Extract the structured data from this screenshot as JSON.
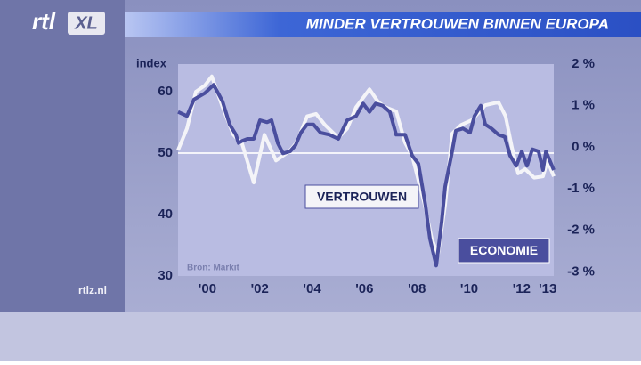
{
  "page": {
    "logo": "rtl",
    "logo_badge": "XL",
    "site": "rtlz.nl"
  },
  "chart_data": {
    "type": "line",
    "title": "MINDER VERTROUWEN BINNEN EUROPA",
    "y_label": "index",
    "source": "Bron: Markit",
    "xlim": [
      1998.88,
      2013.23
    ],
    "xticks": [
      {
        "value": 2000,
        "label": "'00"
      },
      {
        "value": 2002,
        "label": "'02"
      },
      {
        "value": 2004,
        "label": "'04"
      },
      {
        "value": 2006,
        "label": "'06"
      },
      {
        "value": 2008,
        "label": "'08"
      },
      {
        "value": 2010,
        "label": "'10"
      },
      {
        "value": 2012,
        "label": "'12"
      },
      {
        "value": 2013,
        "label": "'13"
      }
    ],
    "ylim": [
      30,
      64.5
    ],
    "yticks": [
      30,
      40,
      50,
      60
    ],
    "y2lim": [
      -3.1,
      2
    ],
    "y2ticks": [
      {
        "value": 2,
        "label": "2 %"
      },
      {
        "value": 1,
        "label": "1 %"
      },
      {
        "value": 0,
        "label": "0 %"
      },
      {
        "value": -1,
        "label": "-1 %"
      },
      {
        "value": -2,
        "label": "-2 %"
      },
      {
        "value": -3,
        "label": "-3 %"
      }
    ],
    "reference_line": 50,
    "series": [
      {
        "name": "VERTROUWEN",
        "color": "#f4f4f8",
        "x": [
          1998.88,
          1999.22,
          1999.56,
          1999.9,
          2000.17,
          2000.58,
          2000.99,
          2001.33,
          2001.77,
          2002.18,
          2002.62,
          2003.13,
          2003.4,
          2003.81,
          2004.15,
          2004.49,
          2005.0,
          2005.34,
          2005.68,
          2006.19,
          2006.53,
          2006.8,
          2007.21,
          2007.55,
          2007.82,
          2008.3,
          2008.57,
          2008.81,
          2009.08,
          2009.35,
          2009.69,
          2010.1,
          2010.61,
          2011.12,
          2011.39,
          2011.63,
          2011.87,
          2012.14,
          2012.48,
          2012.82,
          2012.99,
          2013.23
        ],
        "values": [
          50.5,
          54,
          60,
          61,
          62.5,
          57.5,
          53,
          51.5,
          45.2,
          53,
          48.8,
          50.3,
          51.7,
          56,
          56.4,
          54.6,
          52.5,
          54,
          57.5,
          60.4,
          58.3,
          57.5,
          56.8,
          51.7,
          49.6,
          41.6,
          36,
          33.5,
          41.6,
          53.2,
          54.6,
          55.4,
          57.8,
          58.3,
          56,
          51,
          46.7,
          47.4,
          46,
          46.2,
          48.8,
          46.2
        ]
      },
      {
        "name": "ECONOMIE",
        "color": "#4a4e9e",
        "axis": "y2",
        "x": [
          1998.88,
          1999.22,
          1999.49,
          1999.9,
          2000.24,
          2000.58,
          2000.85,
          2001.09,
          2001.19,
          2001.33,
          2001.53,
          2001.77,
          2002.01,
          2002.28,
          2002.45,
          2002.69,
          2002.89,
          2003.16,
          2003.37,
          2003.57,
          2003.81,
          2004.05,
          2004.32,
          2004.66,
          2005.0,
          2005.34,
          2005.68,
          2005.95,
          2006.19,
          2006.43,
          2006.7,
          2006.97,
          2007.21,
          2007.55,
          2007.82,
          2008.06,
          2008.33,
          2008.5,
          2008.74,
          2008.95,
          2009.08,
          2009.32,
          2009.49,
          2009.76,
          2010.03,
          2010.2,
          2010.44,
          2010.61,
          2010.85,
          2011.12,
          2011.36,
          2011.56,
          2011.8,
          2012.01,
          2012.21,
          2012.41,
          2012.65,
          2012.82,
          2012.93,
          2013.23
        ],
        "values": [
          0.85,
          0.75,
          1.15,
          1.3,
          1.5,
          1.1,
          0.55,
          0.3,
          0.1,
          0.15,
          0.2,
          0.2,
          0.65,
          0.6,
          0.65,
          0.1,
          -0.15,
          -0.1,
          0.05,
          0.35,
          0.55,
          0.55,
          0.35,
          0.3,
          0.2,
          0.65,
          0.75,
          1.05,
          0.85,
          1.05,
          1.0,
          0.85,
          0.3,
          0.3,
          -0.2,
          -0.4,
          -1.4,
          -2.2,
          -2.85,
          -1.8,
          -0.95,
          -0.2,
          0.4,
          0.45,
          0.35,
          0.75,
          1.0,
          0.55,
          0.45,
          0.3,
          0.25,
          -0.2,
          -0.45,
          -0.1,
          -0.45,
          -0.05,
          -0.1,
          -0.55,
          -0.1,
          -0.55
        ]
      }
    ]
  }
}
